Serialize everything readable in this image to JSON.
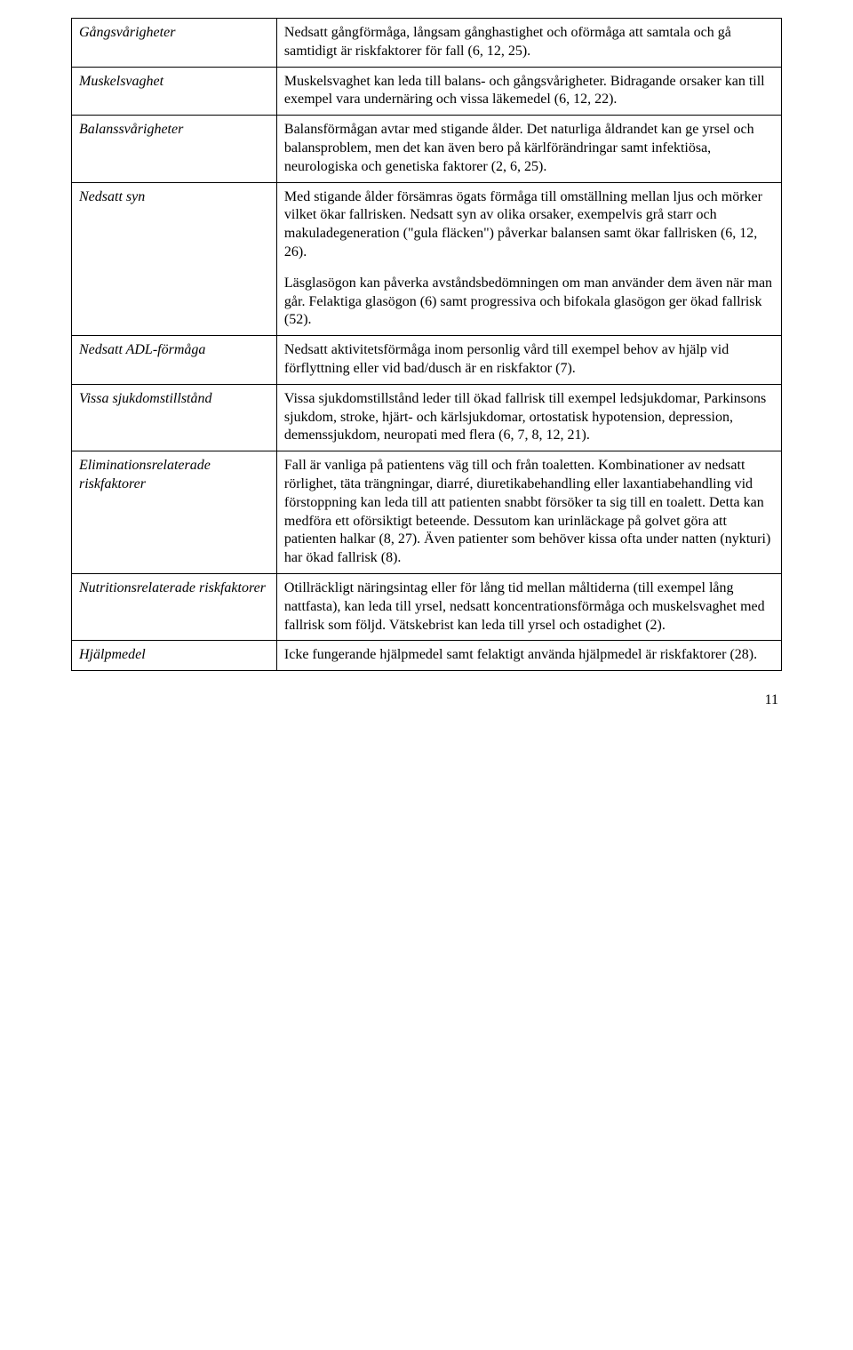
{
  "rows": [
    {
      "label": "Gångsvårigheter",
      "paragraphs": [
        "Nedsatt gångförmåga, långsam gånghastighet och oförmåga att samtala och gå samtidigt är riskfaktorer för fall (6, 12, 25)."
      ]
    },
    {
      "label": "Muskelsvaghet",
      "paragraphs": [
        "Muskelsvaghet kan leda till balans- och gångsvårigheter. Bidragande orsaker kan till exempel vara undernäring och vissa läkemedel (6, 12, 22)."
      ]
    },
    {
      "label": "Balanssvårigheter",
      "paragraphs": [
        "Balansförmågan avtar med stigande ålder. Det naturliga åldrandet kan ge yrsel och balansproblem, men det kan även bero på kärlförändringar samt infektiösa, neurologiska och genetiska faktorer (2, 6, 25)."
      ]
    },
    {
      "label": "Nedsatt syn",
      "paragraphs": [
        "Med stigande ålder försämras ögats förmåga till omställning mellan ljus och mörker vilket ökar fallrisken. Nedsatt syn av olika orsaker, exempelvis grå starr och makuladegeneration (\"gula fläcken\") påverkar balansen samt ökar fallrisken (6, 12, 26).",
        "Läsglasögon kan påverka avståndsbedömningen om man använder dem även när man går. Felaktiga glasögon (6) samt progressiva och bifokala glasögon ger ökad fallrisk (52)."
      ]
    },
    {
      "label": "Nedsatt ADL-förmåga",
      "paragraphs": [
        "Nedsatt aktivitetsförmåga inom personlig vård till exempel behov av hjälp vid förflyttning eller vid bad/dusch är en riskfaktor (7)."
      ]
    },
    {
      "label": "Vissa sjukdomstillstånd",
      "paragraphs": [
        "Vissa sjukdomstillstånd leder till ökad fallrisk till exempel ledsjukdomar, Parkinsons sjukdom, stroke, hjärt- och kärlsjukdomar, ortostatisk hypotension, depression, demenssjukdom, neuropati med flera (6, 7, 8, 12, 21)."
      ]
    },
    {
      "label": "Eliminationsrelaterade riskfaktorer",
      "paragraphs": [
        "Fall är vanliga på patientens väg till och från toaletten. Kombinationer av nedsatt rörlighet, täta trängningar, diarré, diuretikabehandling eller laxantiabehandling vid förstoppning kan leda till att patienten snabbt försöker ta sig till en toalett. Detta kan medföra ett oförsiktigt beteende. Dessutom kan urinläckage på golvet göra att patienten halkar (8, 27). Även patienter som behöver kissa ofta under natten (nykturi) har ökad fallrisk (8)."
      ]
    },
    {
      "label": "Nutritionsrelaterade riskfaktorer",
      "paragraphs": [
        "Otillräckligt näringsintag eller för lång tid mellan måltiderna (till exempel lång nattfasta), kan leda till yrsel, nedsatt koncentrationsförmåga och muskelsvaghet med fallrisk som följd. Vätskebrist kan leda till yrsel och ostadighet (2)."
      ]
    },
    {
      "label": "Hjälpmedel",
      "paragraphs": [
        "Icke fungerande hjälpmedel samt felaktigt använda hjälpmedel är riskfaktorer (28)."
      ]
    }
  ],
  "pageNumber": "11"
}
